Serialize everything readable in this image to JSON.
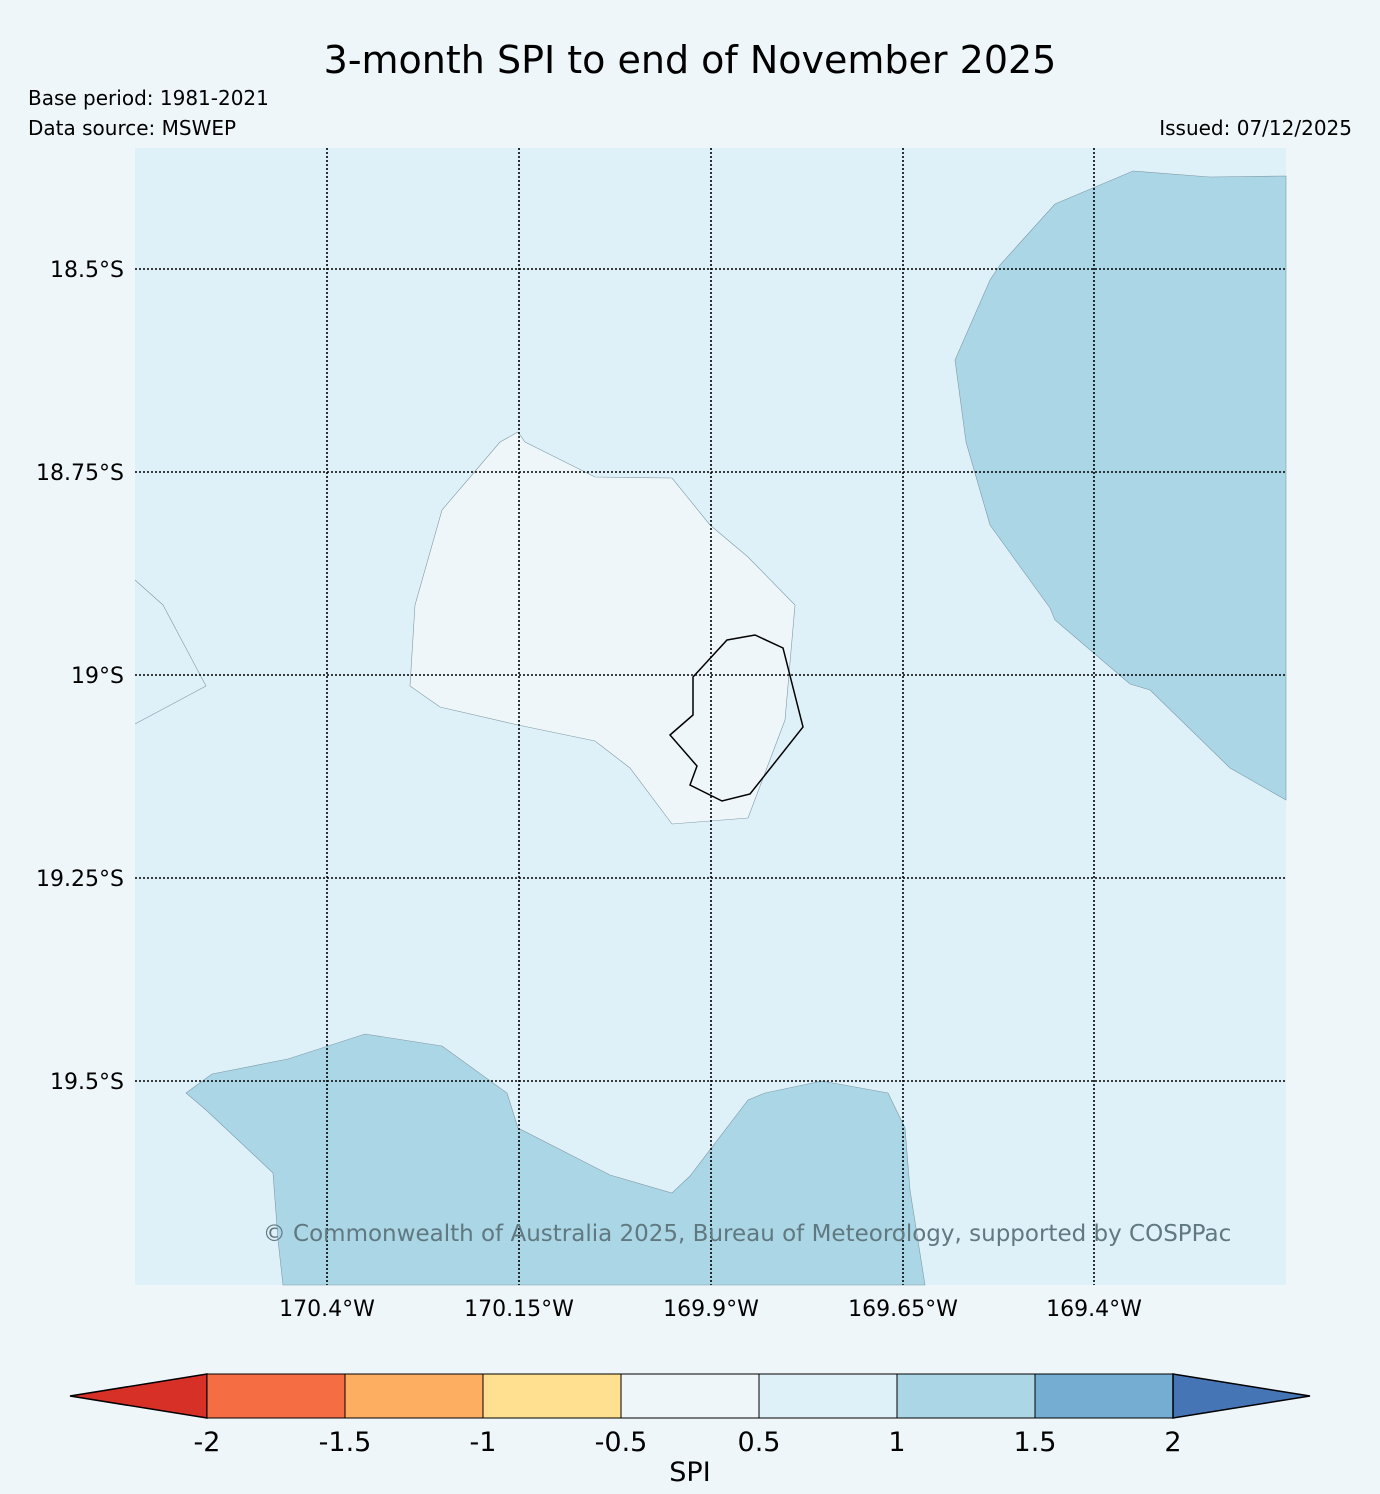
{
  "header": {
    "title": "3-month SPI to end of November 2025",
    "base_period": "Base period: 1981-2021",
    "data_source": "Data source: MSWEP",
    "issued": "Issued: 07/12/2025"
  },
  "map": {
    "latitude_labels": [
      "18.5°S",
      "18.75°S",
      "19°S",
      "19.25°S",
      "19.5°S"
    ],
    "longitude_labels": [
      "170.4°W",
      "170.15°W",
      "169.9°W",
      "169.65°W",
      "169.4°W"
    ],
    "copyright": "© Commonwealth of Australia 2025, Bureau of Meteorology, supported by COSPPac",
    "background_category_color": "#dff1f8"
  },
  "colorbar": {
    "label": "SPI",
    "tick_labels": [
      "-2",
      "-1.5",
      "-1",
      "-0.5",
      "0.5",
      "1",
      "1.5",
      "2"
    ],
    "colors": {
      "below_min": "#d73027",
      "bins": [
        "#f46d43",
        "#fdae61",
        "#fee090",
        "#eef6f9",
        "#dff1f8",
        "#abd6e6",
        "#74add1"
      ],
      "above_max": "#4575b4"
    }
  }
}
